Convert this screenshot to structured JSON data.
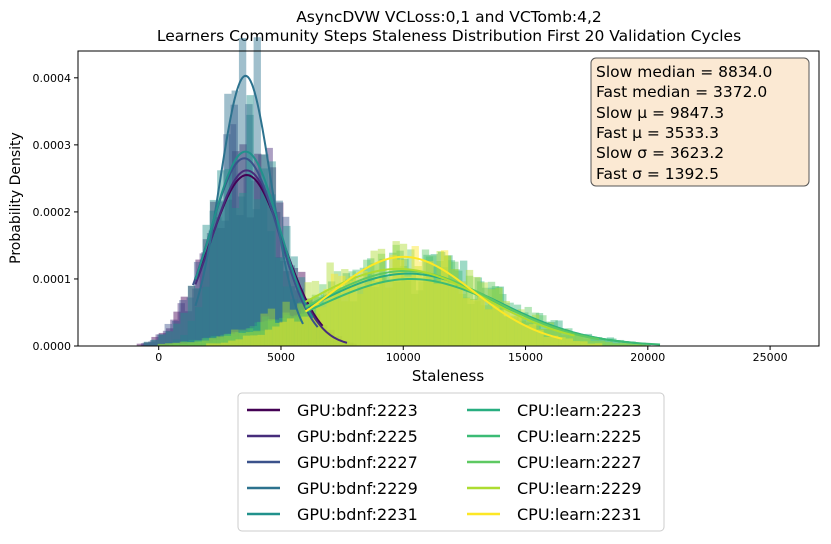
{
  "chart_data": {
    "type": "histogram+kde",
    "title_lines": [
      "AsyncDVW VCLoss:0,1 and VCTomb:4,2",
      "Learners Community Steps Staleness Distribution First 20 Validation Cycles"
    ],
    "xlabel": "Staleness",
    "ylabel": "Probability Density",
    "xlim": [
      -3300,
      27000
    ],
    "ylim": [
      0,
      0.00044
    ],
    "x_ticks": [
      0,
      5000,
      10000,
      15000,
      20000,
      25000
    ],
    "x_tick_labels": [
      "0",
      "5000",
      "10000",
      "15000",
      "20000",
      "25000"
    ],
    "y_ticks": [
      0,
      0.0001,
      0.0002,
      0.0003,
      0.0004
    ],
    "y_tick_labels": [
      "0.0000",
      "0.0001",
      "0.0002",
      "0.0003",
      "0.0004"
    ],
    "grid": false,
    "legend_placement": "below",
    "stats_box": {
      "placement": "top-right",
      "lines": [
        "Slow median = 8834.0",
        "Fast median = 3372.0",
        "Slow μ = 9847.3",
        "Fast μ = 3533.3",
        "Slow σ = 3623.2",
        "Fast σ = 1392.5"
      ]
    },
    "series": [
      {
        "name": "GPU:bdnf:2223",
        "color": "#440154",
        "kde": {
          "mean": 3600,
          "std": 1500,
          "peak": 0.000255,
          "x_range": [
            1600,
            6700
          ]
        },
        "hist_peak": 0.00029
      },
      {
        "name": "GPU:bdnf:2225",
        "color": "#472d7b",
        "kde": {
          "mean": 3600,
          "std": 1450,
          "peak": 0.000262,
          "x_range": [
            1500,
            7700
          ]
        },
        "hist_peak": 0.00031
      },
      {
        "name": "GPU:bdnf:2227",
        "color": "#3b528b",
        "kde": {
          "mean": 3500,
          "std": 1400,
          "peak": 0.00028,
          "x_range": [
            1400,
            6500
          ]
        },
        "hist_peak": 0.00033
      },
      {
        "name": "GPU:bdnf:2229",
        "color": "#2c728e",
        "kde": {
          "mean": 3550,
          "std": 1050,
          "peak": 0.000403,
          "x_range": [
            1500,
            5900
          ]
        },
        "hist_peak": 0.00044
      },
      {
        "name": "GPU:bdnf:2231",
        "color": "#21918c",
        "kde": {
          "mean": 3550,
          "std": 1400,
          "peak": 0.00029,
          "x_range": [
            1500,
            6300
          ]
        },
        "hist_peak": 0.00032
      },
      {
        "name": "CPU:learn:2223",
        "color": "#28ae80",
        "kde": {
          "mean": 10200,
          "std": 3700,
          "peak": 0.000108,
          "x_range": [
            6000,
            19500
          ]
        },
        "hist_peak": 0.00013
      },
      {
        "name": "CPU:learn:2225",
        "color": "#3bbb75",
        "kde": {
          "mean": 10300,
          "std": 3700,
          "peak": 0.0001,
          "x_range": [
            6000,
            20500
          ]
        },
        "hist_peak": 0.00012
      },
      {
        "name": "CPU:learn:2227",
        "color": "#5ec962",
        "kde": {
          "mean": 10100,
          "std": 3600,
          "peak": 0.000112,
          "x_range": [
            6000,
            18000
          ]
        },
        "hist_peak": 0.00013
      },
      {
        "name": "CPU:learn:2229",
        "color": "#addc30",
        "kde": {
          "mean": 9800,
          "std": 3600,
          "peak": 0.000115,
          "x_range": [
            6000,
            17000
          ]
        },
        "hist_peak": 0.00014
      },
      {
        "name": "CPU:learn:2231",
        "color": "#fde725",
        "kde": {
          "mean": 10000,
          "std": 2900,
          "peak": 0.000133,
          "x_range": [
            6000,
            16500
          ]
        },
        "hist_peak": 0.00015
      }
    ]
  }
}
